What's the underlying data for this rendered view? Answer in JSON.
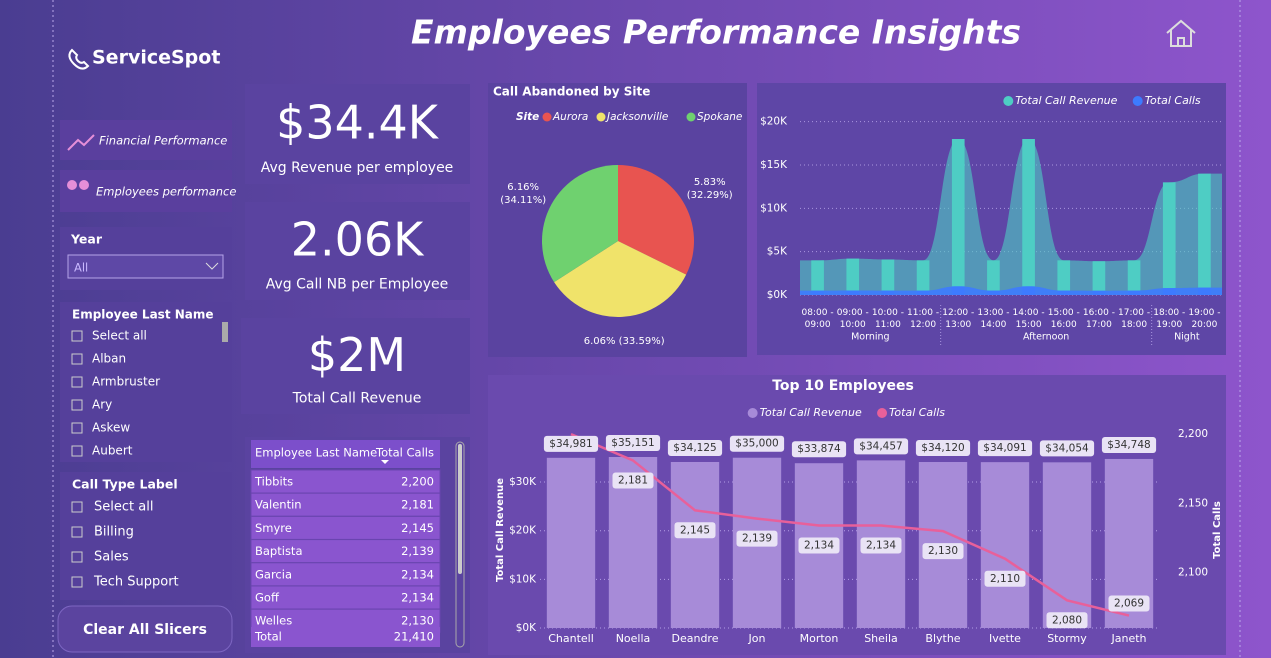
{
  "header": {
    "brand": "ServiceSpot",
    "title": "Employees Performance Insights"
  },
  "nav": [
    "Financial Performance",
    "Employees performance"
  ],
  "slicers": {
    "year": {
      "label": "Year",
      "value": "All"
    },
    "employee": {
      "label": "Employee Last Name",
      "options": [
        "Select all",
        "Alban",
        "Armbruster",
        "Ary",
        "Askew",
        "Aubert"
      ]
    },
    "call_type": {
      "label": "Call Type Label",
      "options": [
        "Select all",
        "Billing",
        "Sales",
        "Tech Support"
      ]
    }
  },
  "clear_button": "Clear All Slicers",
  "kpis": [
    {
      "value": "$34.4K",
      "label": "Avg Revenue per employee"
    },
    {
      "value": "2.06K",
      "label": "Avg Call NB per Employee"
    },
    {
      "value": "$2M",
      "label": "Total Call Revenue"
    }
  ],
  "table": {
    "columns": [
      "Employee Last Name",
      "Total Calls"
    ],
    "rows": [
      [
        "Tibbits",
        "2,200"
      ],
      [
        "Valentin",
        "2,181"
      ],
      [
        "Smyre",
        "2,145"
      ],
      [
        "Baptista",
        "2,139"
      ],
      [
        "Garcia",
        "2,134"
      ],
      [
        "Goff",
        "2,134"
      ],
      [
        "Welles",
        "2,130"
      ]
    ],
    "total": [
      "Total",
      "21,410"
    ]
  },
  "chart_data": [
    {
      "type": "pie",
      "title": "Call Abandoned by Site",
      "legend_title": "Site",
      "categories": [
        "Aurora",
        "Jacksonville",
        "Spokane"
      ],
      "values": [
        32.29,
        33.59,
        34.11
      ],
      "value_labels": [
        "5.83% (32.29%)",
        "6.06% (33.59%)",
        "6.16% (34.11%)"
      ],
      "colors": [
        "#e85450",
        "#f0e36a",
        "#6fd16f"
      ]
    },
    {
      "type": "area",
      "categories": [
        "08:00 - 09:00",
        "09:00 - 10:00",
        "10:00 - 11:00",
        "11:00 - 12:00",
        "12:00 - 13:00",
        "13:00 - 14:00",
        "14:00 - 15:00",
        "15:00 - 16:00",
        "16:00 - 17:00",
        "17:00 - 18:00",
        "18:00 - 19:00",
        "19:00 - 20:00"
      ],
      "x_groups": [
        {
          "label": "Morning",
          "first": 0,
          "last": 3
        },
        {
          "label": "Afternoon",
          "first": 4,
          "last": 9
        },
        {
          "label": "Night",
          "first": 10,
          "last": 11
        }
      ],
      "series": [
        {
          "name": "Total Call Revenue",
          "color": "#4ecdc4",
          "values": [
            4000,
            4200,
            4100,
            4000,
            18000,
            4000,
            18000,
            4000,
            3900,
            4000,
            13000,
            14000
          ]
        },
        {
          "name": "Total Calls",
          "color": "#3d7bff",
          "values": [
            500,
            520,
            510,
            500,
            1000,
            500,
            1000,
            500,
            490,
            500,
            800,
            850
          ]
        }
      ],
      "ylim": [
        0,
        21000
      ],
      "yticks": [
        {
          "value": 0,
          "label": "$0K"
        },
        {
          "value": 5000,
          "label": "$5K"
        },
        {
          "value": 10000,
          "label": "$10K"
        },
        {
          "value": 15000,
          "label": "$15K"
        },
        {
          "value": 20000,
          "label": "$20K"
        }
      ],
      "grid": true,
      "legend": "top-right"
    },
    {
      "type": "bar-line",
      "title": "Top 10 Employees",
      "categories": [
        "Chantell",
        "Noella",
        "Deandre",
        "Jon",
        "Morton",
        "Sheila",
        "Blythe",
        "Ivette",
        "Stormy",
        "Janeth"
      ],
      "series": [
        {
          "name": "Total Call Revenue",
          "color": "#a78bd8",
          "values": [
            34981,
            35151,
            34125,
            35000,
            33874,
            34457,
            34120,
            34091,
            34054,
            34748
          ],
          "value_labels": [
            "$34,981",
            "$35,151",
            "$34,125",
            "$35,000",
            "$33,874",
            "$34,457",
            "$34,120",
            "$34,091",
            "$34,054",
            "$34,748"
          ]
        },
        {
          "name": "Total Calls",
          "color": "#e8609a",
          "axis": "y2",
          "values": [
            2200,
            2181,
            2145,
            2139,
            2134,
            2134,
            2130,
            2110,
            2080,
            2069
          ],
          "value_labels": [
            null,
            "2,181",
            "2,145",
            "2,139",
            "2,134",
            "2,134",
            "2,130",
            "2,110",
            "2,080",
            "2,069"
          ]
        }
      ],
      "ylabel": "Total Call Revenue",
      "y2label": "Total Calls",
      "ylim": [
        0,
        40700
      ],
      "yticks": [
        {
          "value": 0,
          "label": "$0K"
        },
        {
          "value": 10000,
          "label": "$10K"
        },
        {
          "value": 20000,
          "label": "$20K"
        },
        {
          "value": 30000,
          "label": "$30K"
        }
      ],
      "y2lim": [
        2060,
        2203
      ],
      "y2ticks": [
        {
          "value": 2100,
          "label": "2,100"
        },
        {
          "value": 2150,
          "label": "2,150"
        },
        {
          "value": 2200,
          "label": "2,200"
        }
      ],
      "grid": true,
      "legend": "top"
    }
  ]
}
